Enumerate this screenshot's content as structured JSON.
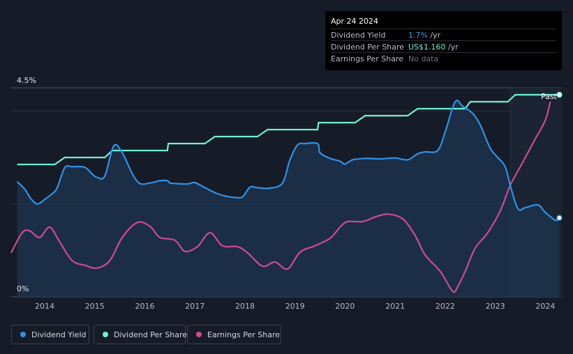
{
  "tooltip": {
    "date": "Apr 24 2024",
    "rows": [
      {
        "label": "Dividend Yield",
        "value": "1.7%",
        "unit": " /yr",
        "color": "#3d9be9"
      },
      {
        "label": "Dividend Per Share",
        "value": "US$1.160",
        "unit": " /yr",
        "color": "#6ff0d4"
      },
      {
        "label": "Earnings Per Share",
        "value": "No data",
        "unit": "",
        "color": "#6b7280"
      }
    ]
  },
  "legend": [
    {
      "label": "Dividend Yield",
      "color": "#2e93e8"
    },
    {
      "label": "Dividend Per Share",
      "color": "#6ff0d4"
    },
    {
      "label": "Earnings Per Share",
      "color": "#cf4a8f"
    }
  ],
  "past_label": "Past",
  "chart_data": {
    "type": "line",
    "title": "",
    "xlabel": "",
    "ylabel": "",
    "ylim": [
      0,
      4.5
    ],
    "xlim": [
      2013.33,
      2024.33
    ],
    "y_tick_labels": [
      "4.5%",
      "0%"
    ],
    "x_ticks": [
      2014,
      2015,
      2016,
      2017,
      2018,
      2019,
      2020,
      2021,
      2022,
      2023,
      2024
    ],
    "forecast_region_start": 2023.3,
    "series": [
      {
        "name": "Dividend Yield",
        "color": "#2e93e8",
        "filled": true,
        "x": [
          2013.45,
          2013.6,
          2013.72,
          2013.85,
          2014.0,
          2014.15,
          2014.25,
          2014.4,
          2014.55,
          2014.8,
          2014.95,
          2015.05,
          2015.2,
          2015.38,
          2015.55,
          2015.75,
          2015.9,
          2016.1,
          2016.3,
          2016.45,
          2016.5,
          2016.6,
          2016.85,
          2017.0,
          2017.2,
          2017.45,
          2017.65,
          2017.8,
          2017.95,
          2018.1,
          2018.25,
          2018.5,
          2018.75,
          2018.9,
          2019.05,
          2019.2,
          2019.45,
          2019.5,
          2019.7,
          2019.9,
          2020.0,
          2020.15,
          2020.4,
          2020.7,
          2021.0,
          2021.25,
          2021.45,
          2021.6,
          2021.85,
          2022.0,
          2022.2,
          2022.35,
          2022.55,
          2022.7,
          2022.9,
          2023.05,
          2023.2,
          2023.3,
          2023.45,
          2023.6,
          2023.85,
          2024.0,
          2024.2,
          2024.28
        ],
        "y": [
          2.48,
          2.32,
          2.12,
          2.0,
          2.1,
          2.22,
          2.35,
          2.78,
          2.8,
          2.79,
          2.64,
          2.57,
          2.6,
          3.25,
          3.1,
          2.65,
          2.44,
          2.45,
          2.5,
          2.5,
          2.45,
          2.44,
          2.43,
          2.46,
          2.35,
          2.22,
          2.16,
          2.14,
          2.15,
          2.36,
          2.35,
          2.34,
          2.45,
          2.95,
          3.27,
          3.3,
          3.3,
          3.1,
          2.98,
          2.92,
          2.86,
          2.95,
          2.98,
          2.97,
          2.99,
          2.95,
          3.08,
          3.12,
          3.15,
          3.55,
          4.2,
          4.1,
          3.95,
          3.7,
          3.2,
          3.0,
          2.8,
          2.4,
          1.9,
          1.92,
          1.98,
          1.82,
          1.65,
          1.7
        ]
      },
      {
        "name": "Dividend Per Share",
        "color": "#6ff0d4",
        "filled": false,
        "x": [
          2013.45,
          2014.2,
          2014.4,
          2015.2,
          2015.35,
          2016.45,
          2016.47,
          2017.2,
          2017.4,
          2018.25,
          2018.45,
          2019.45,
          2019.47,
          2020.2,
          2020.4,
          2021.25,
          2021.45,
          2022.4,
          2022.5,
          2023.25,
          2023.4,
          2024.28
        ],
        "y": [
          2.85,
          2.85,
          3.0,
          3.0,
          3.15,
          3.15,
          3.3,
          3.3,
          3.45,
          3.45,
          3.6,
          3.6,
          3.75,
          3.75,
          3.9,
          3.9,
          4.05,
          4.05,
          4.2,
          4.2,
          4.35,
          4.35
        ]
      },
      {
        "name": "Earnings Per Share",
        "color": "#cf4a8f",
        "filled": false,
        "x": [
          2013.33,
          2013.55,
          2013.7,
          2013.9,
          2014.1,
          2014.3,
          2014.55,
          2014.8,
          2015.05,
          2015.3,
          2015.55,
          2015.85,
          2016.1,
          2016.3,
          2016.6,
          2016.8,
          2017.05,
          2017.3,
          2017.55,
          2017.85,
          2018.05,
          2018.35,
          2018.6,
          2018.85,
          2019.1,
          2019.4,
          2019.7,
          2019.9,
          2020.05,
          2020.35,
          2020.6,
          2020.85,
          2021.15,
          2021.4,
          2021.6,
          2021.9,
          2022.15,
          2022.25,
          2022.4,
          2022.6,
          2022.85,
          2023.1,
          2023.3,
          2023.55,
          2023.8,
          2024.0,
          2024.1
        ],
        "y": [
          0.95,
          1.38,
          1.42,
          1.28,
          1.5,
          1.18,
          0.78,
          0.68,
          0.62,
          0.78,
          1.28,
          1.6,
          1.52,
          1.28,
          1.22,
          0.98,
          1.08,
          1.38,
          1.1,
          1.08,
          0.95,
          0.66,
          0.75,
          0.6,
          0.96,
          1.1,
          1.26,
          1.5,
          1.62,
          1.62,
          1.72,
          1.78,
          1.68,
          1.32,
          0.9,
          0.55,
          0.12,
          0.22,
          0.55,
          1.05,
          1.38,
          1.85,
          2.4,
          2.9,
          3.4,
          3.8,
          4.2
        ]
      }
    ]
  }
}
